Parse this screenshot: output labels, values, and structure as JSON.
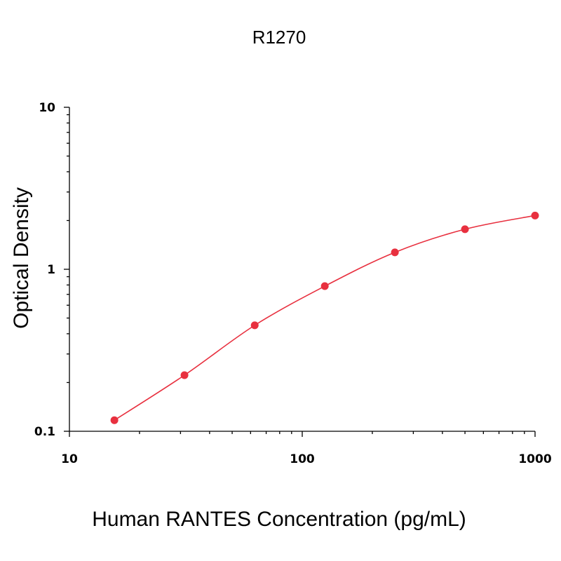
{
  "chart_data": {
    "type": "scatter",
    "title": "R1270",
    "xlabel": "Human RANTES Concentration (pg/mL)",
    "ylabel": "Optical Density",
    "x_scale": "log",
    "y_scale": "log",
    "xlim": [
      10,
      1000
    ],
    "ylim": [
      0.1,
      10
    ],
    "x_tick_labels": [
      "10",
      "100",
      "1000"
    ],
    "y_tick_labels": [
      "10",
      "1",
      "0.1"
    ],
    "grid": false,
    "color": "#e8303f",
    "series": [
      {
        "x": [
          15.6,
          31.2,
          62.5,
          125,
          250,
          500,
          1000
        ],
        "y": [
          0.117,
          0.222,
          0.451,
          0.787,
          1.272,
          1.767,
          2.147
        ]
      }
    ],
    "fit_curve": true
  }
}
